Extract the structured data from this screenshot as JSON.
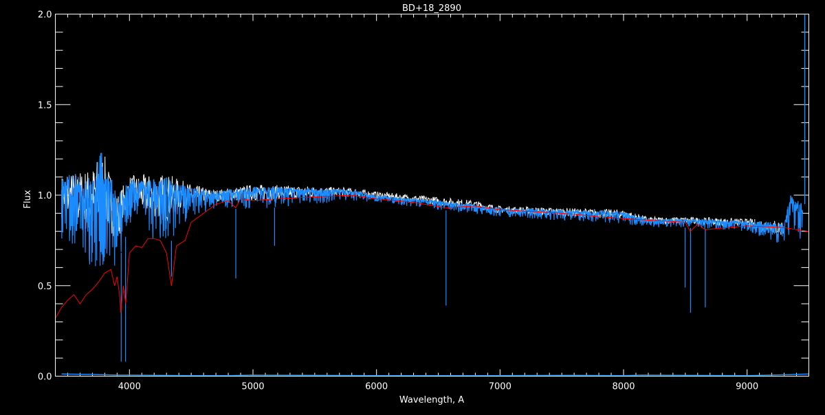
{
  "chart_data": {
    "type": "line",
    "title": "BD+18_2890",
    "xlabel": "Wavelength, A",
    "ylabel": "Flux",
    "xlim": [
      3400,
      9500
    ],
    "ylim": [
      0.0,
      2.0
    ],
    "grid": false,
    "x_ticks": [
      4000,
      5000,
      6000,
      7000,
      8000,
      9000
    ],
    "x_tick_labels": [
      "4000",
      "5000",
      "6000",
      "7000",
      "8000",
      "9000"
    ],
    "x_minor_step": 100,
    "y_ticks": [
      0.0,
      0.5,
      1.0,
      1.5,
      2.0
    ],
    "y_tick_labels": [
      "0.0",
      "0.5",
      "1.0",
      "1.5",
      "2.0"
    ],
    "y_minor_step": 0.1,
    "colors": {
      "background": "#000000",
      "axes": "#ffffff",
      "observed": "#1a8cff",
      "reference": "#ffffff",
      "model": "#ff0000"
    },
    "series": [
      {
        "role": "model",
        "color": "#ff0000",
        "x": [
          3400,
          3450,
          3500,
          3550,
          3600,
          3650,
          3700,
          3750,
          3800,
          3850,
          3880,
          3900,
          3920,
          3930,
          3950,
          3970,
          4000,
          4050,
          4100,
          4150,
          4200,
          4250,
          4300,
          4340,
          4380,
          4450,
          4500,
          4600,
          4700,
          4800,
          4860,
          4900,
          5000,
          5200,
          5500,
          5800,
          6000,
          6300,
          6563,
          6800,
          7000,
          7500,
          8000,
          8500,
          8540,
          8600,
          8660,
          9000,
          9300,
          9500
        ],
        "y": [
          0.32,
          0.38,
          0.42,
          0.45,
          0.4,
          0.45,
          0.48,
          0.52,
          0.57,
          0.59,
          0.5,
          0.55,
          0.45,
          0.35,
          0.5,
          0.4,
          0.68,
          0.72,
          0.71,
          0.76,
          0.76,
          0.75,
          0.68,
          0.5,
          0.72,
          0.75,
          0.85,
          0.9,
          0.95,
          0.97,
          0.93,
          0.98,
          0.97,
          0.98,
          0.99,
          1.0,
          0.98,
          0.96,
          0.93,
          0.94,
          0.92,
          0.9,
          0.87,
          0.85,
          0.8,
          0.84,
          0.81,
          0.83,
          0.82,
          0.8
        ]
      },
      {
        "role": "observed",
        "color": "#1a8cff",
        "x": [
          3450,
          3550,
          3650,
          3700,
          3780,
          3850,
          3900,
          4000,
          4100,
          4300,
          4400,
          4500,
          4700,
          5000,
          5500,
          5800,
          6000,
          6500,
          6800,
          7000,
          7500,
          8000,
          8200,
          8500,
          9000,
          9300,
          9350,
          9450
        ],
        "upper": [
          1.1,
          1.12,
          1.1,
          1.15,
          1.25,
          1.1,
          1.0,
          1.1,
          1.08,
          1.1,
          1.06,
          1.05,
          1.02,
          1.05,
          1.04,
          1.03,
          1.0,
          0.97,
          0.95,
          0.93,
          0.92,
          0.91,
          0.87,
          0.87,
          0.86,
          0.85,
          1.0,
          0.95
        ],
        "lower": [
          0.75,
          0.7,
          0.6,
          0.55,
          0.6,
          0.62,
          0.6,
          0.85,
          0.8,
          0.7,
          0.82,
          0.88,
          0.93,
          0.92,
          0.95,
          0.97,
          0.96,
          0.92,
          0.9,
          0.88,
          0.86,
          0.84,
          0.82,
          0.82,
          0.8,
          0.72,
          0.78,
          0.75
        ],
        "absorption_lines": [
          [
            3933,
            0.08
          ],
          [
            3968,
            0.08
          ],
          [
            4340,
            0.55
          ],
          [
            4861,
            0.54
          ],
          [
            5175,
            0.72
          ],
          [
            6563,
            0.39
          ],
          [
            8498,
            0.49
          ],
          [
            8542,
            0.35
          ],
          [
            8662,
            0.38
          ]
        ],
        "spike": [
          9467,
          2.0
        ]
      },
      {
        "role": "reference",
        "color": "#ffffff",
        "x": [
          3450,
          3700,
          3780,
          3900,
          4000,
          4300,
          4500,
          4700,
          5000,
          5500,
          5800,
          6000,
          6500,
          6800,
          7000,
          7500,
          8000,
          8200,
          8500,
          9000,
          9300
        ],
        "y": [
          1.11,
          1.16,
          1.26,
          1.01,
          1.11,
          1.12,
          1.06,
          1.03,
          1.06,
          1.05,
          1.04,
          1.02,
          0.99,
          0.97,
          0.94,
          0.93,
          0.92,
          0.88,
          0.88,
          0.87,
          0.86
        ]
      },
      {
        "role": "error",
        "color": "#1a8cff",
        "x": [
          3450,
          3700,
          3900,
          4000,
          4500,
          4800,
          5000,
          5500,
          6000,
          7000,
          7600,
          8000,
          8150,
          9000,
          9300,
          9500
        ],
        "y": [
          0.012,
          0.01,
          0.006,
          0.006,
          0.003,
          0.003,
          0.006,
          0.005,
          0.003,
          0.003,
          0.005,
          0.003,
          0.006,
          0.003,
          0.008,
          0.012
        ]
      }
    ]
  }
}
